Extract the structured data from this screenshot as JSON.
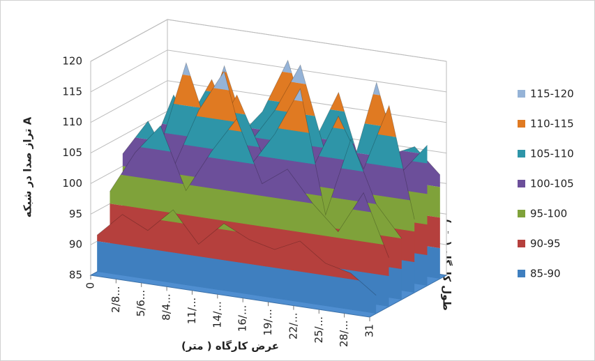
{
  "chart_data": {
    "type": "surface",
    "y_label": "تراز صدا در شبکه A",
    "x_label": "عرض کارگاه ( متر)",
    "depth_label": "طول کارگاه (متر)",
    "categories": [
      "0",
      "2/8...",
      "5/6...",
      "8/4...",
      "11/...",
      "14/...",
      "16/...",
      "19/...",
      "22/...",
      "25/...",
      "28/...",
      "31"
    ],
    "ylim": [
      85,
      120
    ],
    "yticks": [
      85,
      90,
      95,
      100,
      105,
      110,
      115,
      120
    ],
    "grid": true,
    "bands": [
      {
        "name": "115-120",
        "color": "#95b3d7",
        "range": [
          115,
          120
        ]
      },
      {
        "name": "110-115",
        "color": "#e07a22",
        "range": [
          110,
          115
        ]
      },
      {
        "name": "105-110",
        "color": "#2e95a8",
        "range": [
          105,
          110
        ]
      },
      {
        "name": "100-105",
        "color": "#6c4f9a",
        "range": [
          100,
          105
        ]
      },
      {
        "name": "95-100",
        "color": "#7fa23a",
        "range": [
          95,
          100
        ]
      },
      {
        "name": "90-95",
        "color": "#b5403d",
        "range": [
          90,
          95
        ]
      },
      {
        "name": "85-90",
        "color": "#3f7fbf",
        "range": [
          85,
          90
        ]
      }
    ],
    "surface": [
      [
        101,
        104,
        112,
        103,
        108,
        117,
        104,
        113,
        100,
        104,
        106,
        102
      ],
      [
        99,
        110,
        103,
        116,
        104,
        110,
        118,
        104,
        102,
        117,
        103,
        108
      ],
      [
        96,
        103,
        117,
        105,
        113,
        104,
        108,
        103,
        112,
        104,
        115,
        97
      ],
      [
        102,
        108,
        101,
        111,
        118,
        103,
        109,
        117,
        97,
        110,
        100,
        95
      ],
      [
        97,
        104,
        109,
        99,
        106,
        112,
        102,
        105,
        100,
        96,
        103,
        93
      ],
      [
        91,
        95,
        93,
        97,
        92,
        96,
        94,
        93,
        95,
        92,
        91,
        88
      ]
    ]
  }
}
